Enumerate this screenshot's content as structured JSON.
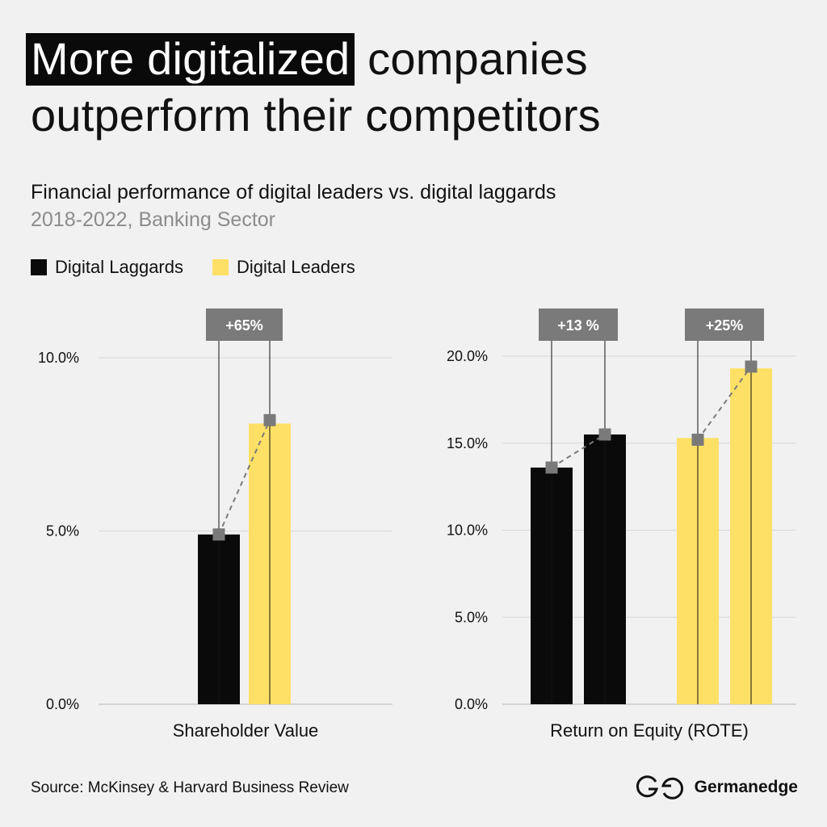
{
  "title": {
    "highlight": "More digitalized",
    "rest_line1": " companies",
    "line2": "outperform their competitors"
  },
  "subtitle": "Financial performance of digital leaders vs. digital laggards",
  "subtitle2": "2018-2022, Banking Sector",
  "legend": [
    {
      "label": "Digital Laggards",
      "color": "#0a0a0a"
    },
    {
      "label": "Digital Leaders",
      "color": "#ffe066"
    }
  ],
  "colors": {
    "laggards": "#0a0a0a",
    "leaders": "#ffe066",
    "marker": "#7a7a7a",
    "grid": "#d7d7d7"
  },
  "chart_data": [
    {
      "type": "bar",
      "category": "Shareholder Value",
      "ylim": [
        0,
        10
      ],
      "yticks": [
        "0.0%",
        "5.0%",
        "10.0%"
      ],
      "yticks_values": [
        0,
        5,
        10
      ],
      "grid": true,
      "bars": [
        {
          "series": "Digital Laggards",
          "value": 4.9
        },
        {
          "series": "Digital Leaders",
          "value": 8.1
        }
      ],
      "markers": [
        4.9,
        8.2
      ],
      "annotations": [
        {
          "label": "+65%",
          "bars": [
            0,
            1
          ]
        }
      ]
    },
    {
      "type": "bar",
      "category": "Return on Equity (ROTE)",
      "ylim": [
        0,
        20
      ],
      "yticks": [
        "0.0%",
        "5.0%",
        "10.0%",
        "15.0%",
        "20.0%"
      ],
      "yticks_values": [
        0,
        5,
        10,
        15,
        20
      ],
      "grid": true,
      "bars": [
        {
          "series": "Digital Laggards",
          "value": 13.6
        },
        {
          "series": "Digital Laggards",
          "value": 15.5
        },
        {
          "series": "Digital Leaders",
          "value": 15.3
        },
        {
          "series": "Digital Leaders",
          "value": 19.3
        }
      ],
      "markers": [
        13.6,
        15.5,
        15.2,
        19.4
      ],
      "annotations": [
        {
          "label": "+13 %",
          "bars": [
            0,
            1
          ]
        },
        {
          "label": "+25%",
          "bars": [
            2,
            3
          ]
        }
      ]
    }
  ],
  "source": "Source: McKinsey & Harvard Business Review",
  "brand": {
    "name": "Germanedge",
    "logo_icon": "germanedge-logo-icon"
  }
}
